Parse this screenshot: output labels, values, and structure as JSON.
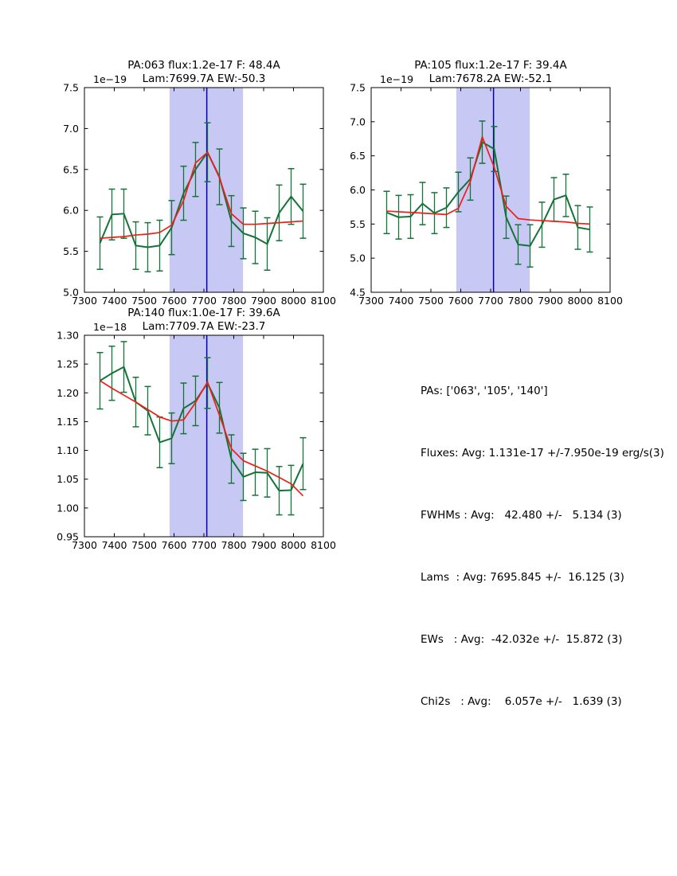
{
  "colors": {
    "band": "#c8c8f5",
    "vline": "#0000cc",
    "data": "#147337",
    "fit": "#ed1f1a",
    "frame": "#000000",
    "background": "#ffffff"
  },
  "chart_data": [
    {
      "id": "PA063",
      "type": "line",
      "title_line1": "PA:063 flux:1.2e-17 F: 48.4A",
      "title_line2": "Lam:7699.7A EW:-50.3",
      "scale_label": "1e−19",
      "xlim": [
        7300,
        8100
      ],
      "ylim": [
        5.0,
        7.5
      ],
      "xtick_labels": [
        "7300",
        "7400",
        "7500",
        "7600",
        "7700",
        "7800",
        "7900",
        "8000",
        "8100"
      ],
      "ytick_labels": [
        "5.0",
        "5.5",
        "6.0",
        "6.5",
        "7.0",
        "7.5"
      ],
      "band": [
        7585,
        7831
      ],
      "vline": 7709.7,
      "x": [
        7352,
        7392,
        7432,
        7472,
        7512,
        7552,
        7592,
        7632,
        7672,
        7712,
        7752,
        7792,
        7832,
        7872,
        7912,
        7952,
        7992,
        8032
      ],
      "y": [
        5.6,
        5.95,
        5.96,
        5.57,
        5.55,
        5.57,
        5.79,
        6.21,
        6.5,
        6.71,
        6.41,
        5.87,
        5.72,
        5.67,
        5.59,
        5.97,
        6.17,
        5.99
      ],
      "yerr": [
        0.32,
        0.31,
        0.3,
        0.29,
        0.3,
        0.31,
        0.33,
        0.33,
        0.33,
        0.36,
        0.34,
        0.31,
        0.31,
        0.32,
        0.32,
        0.34,
        0.34,
        0.33
      ],
      "fit_y": [
        5.66,
        5.67,
        5.68,
        5.7,
        5.71,
        5.73,
        5.82,
        6.12,
        6.58,
        6.71,
        6.4,
        5.96,
        5.83,
        5.83,
        5.84,
        5.85,
        5.86,
        5.87
      ]
    },
    {
      "id": "PA105",
      "type": "line",
      "title_line1": "PA:105 flux:1.2e-17 F: 39.4A",
      "title_line2": "Lam:7678.2A EW:-52.1",
      "scale_label": "1e−19",
      "xlim": [
        7300,
        8100
      ],
      "ylim": [
        4.5,
        7.5
      ],
      "xtick_labels": [
        "7300",
        "7400",
        "7500",
        "7600",
        "7700",
        "7800",
        "7900",
        "8000",
        "8100"
      ],
      "ytick_labels": [
        "4.5",
        "5.0",
        "5.5",
        "6.0",
        "6.5",
        "7.0",
        "7.5"
      ],
      "band": [
        7585,
        7831
      ],
      "vline": 7709.7,
      "x": [
        7352,
        7392,
        7432,
        7472,
        7512,
        7552,
        7592,
        7632,
        7672,
        7712,
        7752,
        7792,
        7832,
        7872,
        7912,
        7952,
        7992,
        8032
      ],
      "y": [
        5.67,
        5.6,
        5.61,
        5.8,
        5.66,
        5.74,
        5.97,
        6.16,
        6.7,
        6.6,
        5.6,
        5.2,
        5.18,
        5.49,
        5.86,
        5.92,
        5.45,
        5.42
      ],
      "yerr": [
        0.31,
        0.32,
        0.32,
        0.31,
        0.3,
        0.29,
        0.29,
        0.31,
        0.31,
        0.33,
        0.31,
        0.29,
        0.31,
        0.33,
        0.32,
        0.31,
        0.32,
        0.33
      ],
      "fit_y": [
        5.69,
        5.68,
        5.67,
        5.66,
        5.65,
        5.64,
        5.73,
        6.12,
        6.78,
        6.33,
        5.76,
        5.58,
        5.56,
        5.55,
        5.54,
        5.53,
        5.51,
        5.5
      ]
    },
    {
      "id": "PA140",
      "type": "line",
      "title_line1": "PA:140 flux:1.0e-17 F: 39.6A",
      "title_line2": "Lam:7709.7A EW:-23.7",
      "scale_label": "1e−18",
      "xlim": [
        7300,
        8100
      ],
      "ylim": [
        0.95,
        1.3
      ],
      "xtick_labels": [
        "7300",
        "7400",
        "7500",
        "7600",
        "7700",
        "7800",
        "7900",
        "8000",
        "8100"
      ],
      "ytick_labels": [
        "0.95",
        "1.00",
        "1.05",
        "1.10",
        "1.15",
        "1.20",
        "1.25",
        "1.30"
      ],
      "band": [
        7585,
        7831
      ],
      "vline": 7709.7,
      "x": [
        7352,
        7392,
        7432,
        7472,
        7512,
        7552,
        7592,
        7632,
        7672,
        7712,
        7752,
        7792,
        7832,
        7872,
        7912,
        7952,
        7992,
        8032
      ],
      "y": [
        1.221,
        1.234,
        1.245,
        1.184,
        1.169,
        1.114,
        1.121,
        1.173,
        1.186,
        1.217,
        1.174,
        1.085,
        1.054,
        1.062,
        1.061,
        1.03,
        1.031,
        1.077
      ],
      "yerr": [
        0.049,
        0.047,
        0.044,
        0.043,
        0.042,
        0.044,
        0.044,
        0.044,
        0.043,
        0.044,
        0.044,
        0.042,
        0.041,
        0.04,
        0.042,
        0.042,
        0.043,
        0.045
      ],
      "fit_y": [
        1.221,
        1.208,
        1.196,
        1.184,
        1.171,
        1.158,
        1.151,
        1.153,
        1.183,
        1.219,
        1.161,
        1.103,
        1.082,
        1.073,
        1.064,
        1.053,
        1.042,
        1.021
      ]
    }
  ],
  "stats": {
    "lines": [
      "PAs: ['063', '105', '140']",
      "Fluxes: Avg: 1.131e-17 +/-7.950e-19 erg/s(3)",
      "FWHMs : Avg:   42.480 +/-   5.134 (3)",
      "Lams  : Avg: 7695.845 +/-  16.125 (3)",
      "EWs   : Avg:  -42.032e +/-  15.872 (3)",
      "Chi2s   : Avg:    6.057e +/-   1.639 (3)"
    ]
  }
}
